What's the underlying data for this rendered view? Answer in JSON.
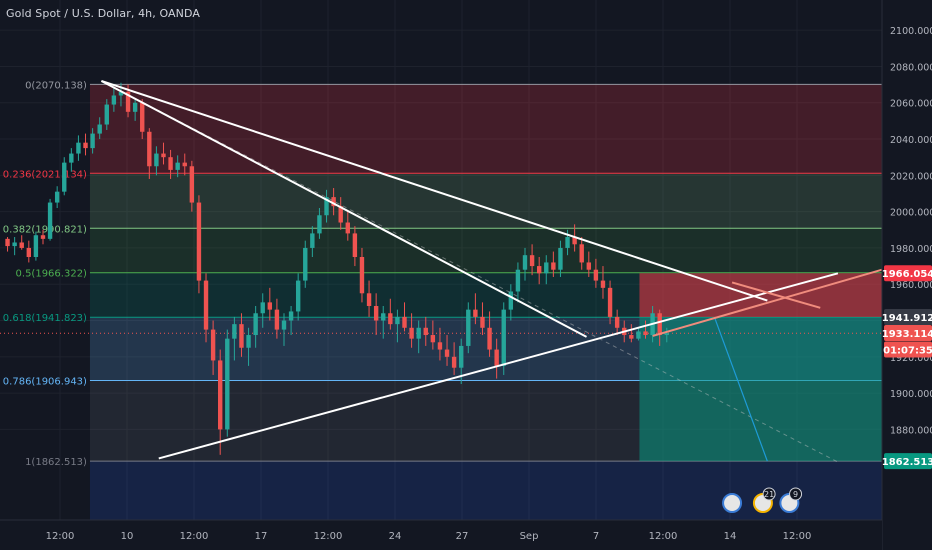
{
  "header": {
    "title": "Gold Spot / U.S. Dollar, 4h, OANDA"
  },
  "colors": {
    "background": "#131722",
    "bull": "#26a69a",
    "bear": "#ef5350",
    "grid": "#1e222d",
    "axis_text": "#b2b5be",
    "trendline": "#ffffff"
  },
  "chart_data": {
    "type": "candlestick",
    "title": "Gold Spot / U.S. Dollar, 4h, OANDA",
    "ylim": [
      1840,
      2110
    ],
    "y_ticks": [
      "1880.000",
      "1900.000",
      "1920.000",
      "1940.000",
      "1960.000",
      "1980.000",
      "2000.000",
      "2020.000",
      "2040.000",
      "2060.000",
      "2080.000",
      "2100.000"
    ],
    "x_ticks": [
      "12:00",
      "10",
      "12:00",
      "17",
      "12:00",
      "24",
      "27",
      "Sep",
      "7",
      "12:00",
      "14",
      "12:00"
    ],
    "fib_levels": [
      {
        "label": "0(2070.138)",
        "ratio": 0,
        "price": 2070.138,
        "color": "#9598a1"
      },
      {
        "label": "0.236(2021.134)",
        "ratio": 0.236,
        "price": 2021.134,
        "color": "#f23645"
      },
      {
        "label": "0.382(1990.821)",
        "ratio": 0.382,
        "price": 1990.821,
        "color": "#81c784"
      },
      {
        "label": "0.5(1966.322)",
        "ratio": 0.5,
        "price": 1966.322,
        "color": "#4caf50"
      },
      {
        "label": "0.618(1941.823)",
        "ratio": 0.618,
        "price": 1941.823,
        "color": "#089981"
      },
      {
        "label": "0.786(1906.943)",
        "ratio": 0.786,
        "price": 1906.943,
        "color": "#64b5f6"
      },
      {
        "label": "1(1862.513)",
        "ratio": 1,
        "price": 1862.513,
        "color": "#787b86"
      }
    ],
    "price_labels": [
      {
        "text": "1966.054",
        "price": 1966.054,
        "color": "#f23645"
      },
      {
        "text": "1941.912",
        "price": 1941.912,
        "color": "#363a45"
      },
      {
        "text": "1933.114",
        "price": 1933.114,
        "color": "#ef5350"
      },
      {
        "text": "01:07:35",
        "price": 1924.0,
        "color": "#ef5350"
      },
      {
        "text": "1862.513",
        "price": 1862.513,
        "color": "#089981"
      }
    ],
    "position": {
      "entry": 1941.912,
      "stop": 1966.054,
      "target": 1862.513
    },
    "trendlines": [
      {
        "p1": [
          0.115,
          2072
        ],
        "p2": [
          0.87,
          1951
        ]
      },
      {
        "p1": [
          0.115,
          2072
        ],
        "p2": [
          0.665,
          1931
        ]
      },
      {
        "p1": [
          0.18,
          1864
        ],
        "p2": [
          0.95,
          1966
        ]
      }
    ],
    "dashed_projection": {
      "p1": [
        0.115,
        2072
      ],
      "p2": [
        0.95,
        1862
      ]
    },
    "event_badges": [
      "21",
      "9"
    ],
    "candles": [
      [
        1985,
        1986,
        1978,
        1981
      ],
      [
        1981,
        1986,
        1976,
        1983
      ],
      [
        1983,
        1987,
        1979,
        1980
      ],
      [
        1980,
        1984,
        1972,
        1975
      ],
      [
        1975,
        1989,
        1973,
        1987
      ],
      [
        1987,
        1990,
        1982,
        1985
      ],
      [
        1985,
        2007,
        1984,
        2005
      ],
      [
        2005,
        2014,
        2002,
        2011
      ],
      [
        2011,
        2030,
        2009,
        2027
      ],
      [
        2027,
        2035,
        2022,
        2032
      ],
      [
        2032,
        2042,
        2028,
        2038
      ],
      [
        2038,
        2043,
        2031,
        2035
      ],
      [
        2035,
        2046,
        2032,
        2043
      ],
      [
        2043,
        2052,
        2040,
        2048
      ],
      [
        2048,
        2062,
        2045,
        2059
      ],
      [
        2059,
        2068,
        2055,
        2064
      ],
      [
        2064,
        2071,
        2058,
        2066
      ],
      [
        2066,
        2070,
        2052,
        2055
      ],
      [
        2055,
        2062,
        2050,
        2060
      ],
      [
        2060,
        2062,
        2040,
        2044
      ],
      [
        2044,
        2046,
        2018,
        2025
      ],
      [
        2025,
        2036,
        2020,
        2032
      ],
      [
        2032,
        2038,
        2026,
        2030
      ],
      [
        2030,
        2034,
        2018,
        2023
      ],
      [
        2023,
        2031,
        2019,
        2027
      ],
      [
        2027,
        2032,
        2020,
        2025
      ],
      [
        2025,
        2028,
        2000,
        2005
      ],
      [
        2005,
        2009,
        1955,
        1962
      ],
      [
        1962,
        1966,
        1928,
        1935
      ],
      [
        1935,
        1940,
        1910,
        1918
      ],
      [
        1918,
        1924,
        1866,
        1880
      ],
      [
        1880,
        1935,
        1876,
        1930
      ],
      [
        1930,
        1942,
        1918,
        1938
      ],
      [
        1938,
        1944,
        1920,
        1925
      ],
      [
        1925,
        1936,
        1915,
        1932
      ],
      [
        1932,
        1948,
        1925,
        1944
      ],
      [
        1944,
        1955,
        1936,
        1950
      ],
      [
        1950,
        1958,
        1940,
        1946
      ],
      [
        1946,
        1952,
        1930,
        1935
      ],
      [
        1935,
        1944,
        1926,
        1940
      ],
      [
        1940,
        1948,
        1932,
        1945
      ],
      [
        1945,
        1966,
        1940,
        1962
      ],
      [
        1962,
        1984,
        1958,
        1980
      ],
      [
        1980,
        1992,
        1975,
        1988
      ],
      [
        1988,
        2002,
        1985,
        1998
      ],
      [
        1998,
        2012,
        1994,
        2008
      ],
      [
        2008,
        2013,
        1998,
        2003
      ],
      [
        2003,
        2008,
        1990,
        1994
      ],
      [
        1994,
        2000,
        1984,
        1988
      ],
      [
        1988,
        1992,
        1970,
        1975
      ],
      [
        1975,
        1980,
        1950,
        1955
      ],
      [
        1955,
        1962,
        1942,
        1948
      ],
      [
        1948,
        1955,
        1932,
        1940
      ],
      [
        1940,
        1948,
        1930,
        1944
      ],
      [
        1944,
        1952,
        1935,
        1938
      ],
      [
        1938,
        1946,
        1928,
        1942
      ],
      [
        1942,
        1950,
        1934,
        1936
      ],
      [
        1936,
        1944,
        1925,
        1930
      ],
      [
        1930,
        1940,
        1922,
        1936
      ],
      [
        1936,
        1942,
        1926,
        1932
      ],
      [
        1932,
        1940,
        1924,
        1928
      ],
      [
        1928,
        1936,
        1918,
        1924
      ],
      [
        1924,
        1932,
        1915,
        1920
      ],
      [
        1920,
        1928,
        1910,
        1914
      ],
      [
        1914,
        1930,
        1905,
        1926
      ],
      [
        1926,
        1950,
        1922,
        1946
      ],
      [
        1946,
        1955,
        1938,
        1942
      ],
      [
        1942,
        1950,
        1932,
        1936
      ],
      [
        1936,
        1945,
        1920,
        1924
      ],
      [
        1924,
        1930,
        1908,
        1915
      ],
      [
        1915,
        1950,
        1910,
        1946
      ],
      [
        1946,
        1960,
        1940,
        1956
      ],
      [
        1956,
        1972,
        1950,
        1968
      ],
      [
        1968,
        1980,
        1962,
        1976
      ],
      [
        1976,
        1982,
        1965,
        1970
      ],
      [
        1970,
        1975,
        1960,
        1966
      ],
      [
        1966,
        1976,
        1960,
        1972
      ],
      [
        1972,
        1978,
        1964,
        1968
      ],
      [
        1968,
        1984,
        1964,
        1980
      ],
      [
        1980,
        1990,
        1976,
        1986
      ],
      [
        1986,
        1993,
        1978,
        1982
      ],
      [
        1982,
        1986,
        1968,
        1972
      ],
      [
        1972,
        1978,
        1964,
        1968
      ],
      [
        1968,
        1974,
        1958,
        1962
      ],
      [
        1962,
        1970,
        1952,
        1958
      ],
      [
        1958,
        1962,
        1938,
        1942
      ],
      [
        1942,
        1946,
        1932,
        1936
      ],
      [
        1936,
        1940,
        1928,
        1932
      ],
      [
        1932,
        1938,
        1928,
        1930
      ],
      [
        1930,
        1936,
        1929,
        1934
      ],
      [
        1934,
        1940,
        1930,
        1932
      ],
      [
        1932,
        1948,
        1928,
        1944
      ],
      [
        1944,
        1946,
        1926,
        1932
      ],
      [
        1932,
        1936,
        1928,
        1933
      ]
    ]
  }
}
